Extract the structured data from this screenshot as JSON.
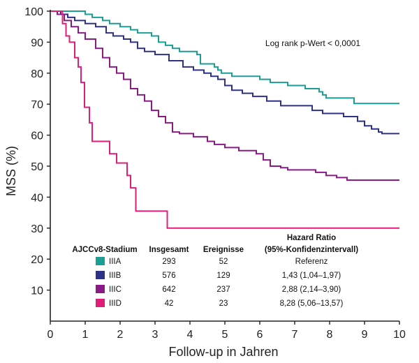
{
  "chart_data": {
    "type": "line",
    "step": true,
    "xlabel": "Follow-up in Jahren",
    "ylabel": "MSS (%)",
    "xlim": [
      0,
      10
    ],
    "ylim": [
      0,
      100
    ],
    "xticks": [
      0,
      1,
      2,
      3,
      4,
      5,
      6,
      7,
      8,
      9,
      10
    ],
    "yticks": [
      10,
      20,
      30,
      40,
      50,
      60,
      70,
      80,
      90,
      100
    ],
    "grid": false,
    "annotation": "Log rank p-Wert < 0,0001",
    "series": [
      {
        "name": "IIIA",
        "color": "#1b9e94",
        "points": [
          [
            0,
            100
          ],
          [
            0.8,
            100
          ],
          [
            1.0,
            99
          ],
          [
            1.2,
            98
          ],
          [
            1.5,
            97
          ],
          [
            1.7,
            96
          ],
          [
            2.0,
            95
          ],
          [
            2.3,
            94
          ],
          [
            2.5,
            93
          ],
          [
            2.9,
            92
          ],
          [
            3.1,
            90
          ],
          [
            3.3,
            89
          ],
          [
            3.5,
            88
          ],
          [
            3.7,
            87
          ],
          [
            4.2,
            86
          ],
          [
            4.3,
            83
          ],
          [
            4.7,
            82
          ],
          [
            4.8,
            81
          ],
          [
            4.9,
            80
          ],
          [
            5.2,
            79
          ],
          [
            6.0,
            78
          ],
          [
            6.3,
            77
          ],
          [
            6.8,
            76
          ],
          [
            7.3,
            75
          ],
          [
            7.7,
            74
          ],
          [
            7.8,
            73
          ],
          [
            7.9,
            72
          ],
          [
            8.7,
            70.2
          ],
          [
            10,
            70.2
          ]
        ]
      },
      {
        "name": "IIIB",
        "color": "#2e3187",
        "points": [
          [
            0,
            100
          ],
          [
            0.3,
            99
          ],
          [
            0.5,
            98
          ],
          [
            0.7,
            97
          ],
          [
            1.0,
            96
          ],
          [
            1.3,
            95
          ],
          [
            1.6,
            93
          ],
          [
            1.8,
            92
          ],
          [
            2.1,
            91
          ],
          [
            2.3,
            90
          ],
          [
            2.5,
            88
          ],
          [
            2.7,
            87
          ],
          [
            3.0,
            86
          ],
          [
            3.4,
            84
          ],
          [
            3.8,
            82
          ],
          [
            4.1,
            81
          ],
          [
            4.4,
            80
          ],
          [
            4.6,
            79
          ],
          [
            4.8,
            78
          ],
          [
            5.0,
            76
          ],
          [
            5.2,
            74.5
          ],
          [
            5.5,
            73.5
          ],
          [
            5.8,
            72.5
          ],
          [
            6.2,
            71
          ],
          [
            6.6,
            69.5
          ],
          [
            7.5,
            68
          ],
          [
            7.8,
            67
          ],
          [
            8.4,
            66
          ],
          [
            8.8,
            64.5
          ],
          [
            9.0,
            63
          ],
          [
            9.2,
            62
          ],
          [
            9.4,
            61
          ],
          [
            9.5,
            60.5
          ],
          [
            10,
            60.5
          ]
        ]
      },
      {
        "name": "IIIC",
        "color": "#8b1a88",
        "points": [
          [
            0,
            100
          ],
          [
            0.2,
            99
          ],
          [
            0.4,
            97
          ],
          [
            0.6,
            95
          ],
          [
            0.8,
            93
          ],
          [
            1.0,
            91
          ],
          [
            1.3,
            88
          ],
          [
            1.5,
            85
          ],
          [
            1.7,
            82
          ],
          [
            1.9,
            80
          ],
          [
            2.1,
            78
          ],
          [
            2.3,
            75
          ],
          [
            2.5,
            73
          ],
          [
            2.7,
            71
          ],
          [
            2.9,
            68
          ],
          [
            3.1,
            66
          ],
          [
            3.3,
            64
          ],
          [
            3.5,
            61
          ],
          [
            3.7,
            60.5
          ],
          [
            4.1,
            59.5
          ],
          [
            4.5,
            58
          ],
          [
            4.7,
            57
          ],
          [
            5.0,
            56
          ],
          [
            5.4,
            55
          ],
          [
            5.9,
            54
          ],
          [
            6.1,
            52
          ],
          [
            6.3,
            50
          ],
          [
            6.6,
            49.5
          ],
          [
            6.8,
            48.8
          ],
          [
            7.6,
            48
          ],
          [
            7.9,
            47
          ],
          [
            8.2,
            46.3
          ],
          [
            8.5,
            45.5
          ],
          [
            10,
            45.5
          ]
        ]
      },
      {
        "name": "IIID",
        "color": "#e21c79",
        "points": [
          [
            0,
            100
          ],
          [
            0.35,
            96
          ],
          [
            0.45,
            92
          ],
          [
            0.55,
            90
          ],
          [
            0.7,
            85
          ],
          [
            0.8,
            82
          ],
          [
            0.88,
            77
          ],
          [
            0.98,
            69
          ],
          [
            1.12,
            64
          ],
          [
            1.2,
            58
          ],
          [
            1.7,
            54
          ],
          [
            1.9,
            51
          ],
          [
            2.2,
            47
          ],
          [
            2.3,
            43
          ],
          [
            2.45,
            35.5
          ],
          [
            3.35,
            30
          ],
          [
            10,
            30
          ]
        ]
      }
    ],
    "table": {
      "headers": {
        "stage": "AJCCv8-Stadium",
        "total": "Insgesamt",
        "events": "Ereignisse",
        "hr_line1": "Hazard Ratio",
        "hr_line2": "(95%-Konfidenzintervall)"
      },
      "rows": [
        {
          "stage": "IIIA",
          "color": "#1b9e94",
          "total": "293",
          "events": "52",
          "hr": "Referenz"
        },
        {
          "stage": "IIIB",
          "color": "#2e3187",
          "total": "576",
          "events": "129",
          "hr": "1,43 (1,04–1,97)"
        },
        {
          "stage": "IIIC",
          "color": "#8b1a88",
          "total": "642",
          "events": "237",
          "hr": "2,88 (2,14–3,90)"
        },
        {
          "stage": "IIID",
          "color": "#e21c79",
          "total": "42",
          "events": "23",
          "hr": "8,28 (5,06–13,57)"
        }
      ]
    }
  }
}
